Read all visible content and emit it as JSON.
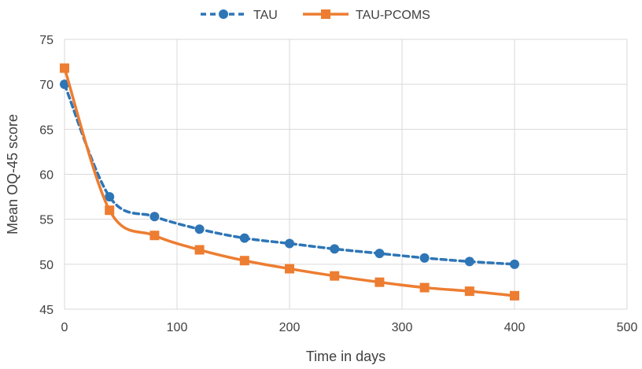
{
  "chart_data": {
    "type": "line",
    "title": "",
    "xlabel": "Time in days",
    "ylabel": "Mean OQ-45 score",
    "xlim": [
      0,
      500
    ],
    "ylim": [
      45,
      75
    ],
    "xticks": [
      0,
      100,
      200,
      300,
      400,
      500
    ],
    "yticks": [
      45,
      50,
      55,
      60,
      65,
      70,
      75
    ],
    "grid": true,
    "legend_position": "top-center",
    "series": [
      {
        "name": "TAU",
        "color": "#2e75b6",
        "line_style": "dashed",
        "marker": "circle",
        "smooth": true,
        "x": [
          0,
          40,
          80,
          120,
          160,
          200,
          240,
          280,
          320,
          360,
          400
        ],
        "y": [
          70.0,
          57.5,
          55.3,
          53.9,
          52.9,
          52.3,
          51.7,
          51.2,
          50.7,
          50.3,
          50.0
        ]
      },
      {
        "name": "TAU-PCOMS",
        "color": "#ed7d31",
        "line_style": "solid",
        "marker": "square",
        "smooth": true,
        "x": [
          0,
          40,
          80,
          120,
          160,
          200,
          240,
          280,
          320,
          360,
          400
        ],
        "y": [
          71.8,
          56.0,
          53.2,
          51.6,
          50.4,
          49.5,
          48.7,
          48.0,
          47.4,
          47.0,
          46.5
        ]
      }
    ]
  }
}
